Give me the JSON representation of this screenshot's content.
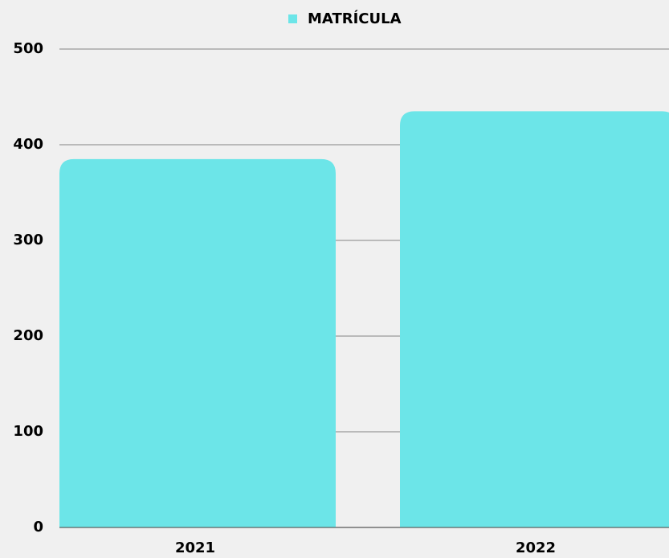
{
  "chart_data": {
    "type": "bar",
    "categories": [
      "2021",
      "2022"
    ],
    "series": [
      {
        "name": "MATRÍCULA",
        "color": "#6ce5e8",
        "values": [
          385,
          435
        ]
      }
    ],
    "ylim": [
      0,
      500
    ],
    "yticks": [
      0,
      100,
      200,
      300,
      400,
      500
    ],
    "grid": true,
    "legend": "top"
  }
}
